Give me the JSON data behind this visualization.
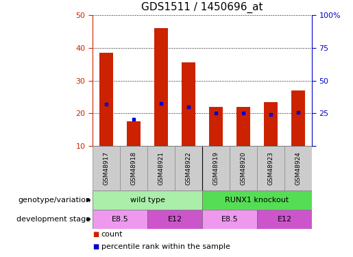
{
  "title": "GDS1511 / 1450696_at",
  "samples": [
    "GSM48917",
    "GSM48918",
    "GSM48921",
    "GSM48922",
    "GSM48919",
    "GSM48920",
    "GSM48923",
    "GSM48924"
  ],
  "counts": [
    38.5,
    17.5,
    46.0,
    35.5,
    22.0,
    22.0,
    23.5,
    27.0
  ],
  "percentile_ranks": [
    32.0,
    20.5,
    32.5,
    30.0,
    25.0,
    25.0,
    24.0,
    25.5
  ],
  "ylim_left": [
    10,
    50
  ],
  "ylim_right": [
    0,
    100
  ],
  "yticks_left": [
    10,
    20,
    30,
    40,
    50
  ],
  "yticks_right": [
    0,
    25,
    50,
    75,
    100
  ],
  "bar_color": "#cc2200",
  "dot_color": "#0000cc",
  "bar_width": 0.5,
  "groups": [
    {
      "label": "wild type",
      "start": 0,
      "end": 4,
      "color": "#aaeea  a"
    },
    {
      "label": "RUNX1 knockout",
      "start": 4,
      "end": 8,
      "color": "#55dd55"
    }
  ],
  "stages": [
    {
      "label": "E8.5",
      "start": 0,
      "end": 2,
      "color": "#ee99ee"
    },
    {
      "label": "E12",
      "start": 2,
      "end": 4,
      "color": "#cc55cc"
    },
    {
      "label": "E8.5",
      "start": 4,
      "end": 6,
      "color": "#ee99ee"
    },
    {
      "label": "E12",
      "start": 6,
      "end": 8,
      "color": "#cc55cc"
    }
  ],
  "row_labels": [
    "genotype/variation",
    "development stage"
  ],
  "legend_count_label": "count",
  "legend_pct_label": "percentile rank within the sample",
  "left_axis_color": "#cc2200",
  "right_axis_color": "#0000cc",
  "grid_color": "#000000",
  "sample_box_color": "#cccccc",
  "title_fontsize": 11
}
